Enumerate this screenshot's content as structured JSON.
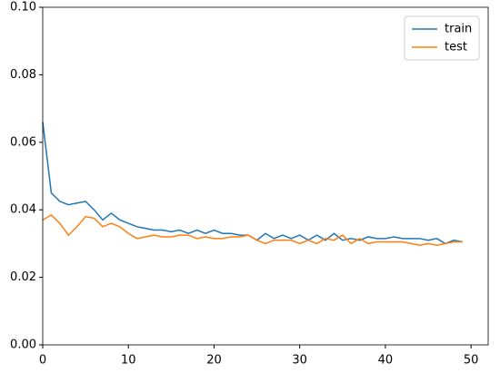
{
  "chart_data": {
    "type": "line",
    "x": [
      0,
      1,
      2,
      3,
      4,
      5,
      6,
      7,
      8,
      9,
      10,
      11,
      12,
      13,
      14,
      15,
      16,
      17,
      18,
      19,
      20,
      21,
      22,
      23,
      24,
      25,
      26,
      27,
      28,
      29,
      30,
      31,
      32,
      33,
      34,
      35,
      36,
      37,
      38,
      39,
      40,
      41,
      42,
      43,
      44,
      45,
      46,
      47,
      48,
      49
    ],
    "series": [
      {
        "name": "train",
        "color": "#1f77b4",
        "values": [
          0.066,
          0.045,
          0.0425,
          0.0415,
          0.042,
          0.0425,
          0.04,
          0.037,
          0.039,
          0.037,
          0.036,
          0.035,
          0.0345,
          0.034,
          0.034,
          0.0335,
          0.034,
          0.033,
          0.034,
          0.033,
          0.034,
          0.033,
          0.033,
          0.0325,
          0.0325,
          0.031,
          0.033,
          0.0315,
          0.0325,
          0.0315,
          0.0325,
          0.031,
          0.0325,
          0.031,
          0.033,
          0.031,
          0.0315,
          0.031,
          0.032,
          0.0315,
          0.0315,
          0.032,
          0.0315,
          0.0315,
          0.0315,
          0.031,
          0.0315,
          0.03,
          0.031,
          0.0305
        ]
      },
      {
        "name": "test",
        "color": "#ff7f0e",
        "values": [
          0.037,
          0.0385,
          0.036,
          0.0325,
          0.035,
          0.038,
          0.0375,
          0.035,
          0.036,
          0.035,
          0.033,
          0.0315,
          0.032,
          0.0325,
          0.032,
          0.032,
          0.0325,
          0.0325,
          0.0315,
          0.032,
          0.0315,
          0.0315,
          0.032,
          0.032,
          0.0325,
          0.031,
          0.03,
          0.031,
          0.031,
          0.031,
          0.03,
          0.031,
          0.03,
          0.0315,
          0.031,
          0.0325,
          0.03,
          0.0315,
          0.03,
          0.0305,
          0.0305,
          0.0305,
          0.0305,
          0.03,
          0.0295,
          0.03,
          0.0295,
          0.03,
          0.0305,
          0.0305
        ]
      }
    ],
    "xlim": [
      0,
      52
    ],
    "xticks": [
      0,
      10,
      20,
      30,
      40,
      50
    ],
    "ylim": [
      0,
      0.1
    ],
    "yticks": [
      {
        "value": 0,
        "label": "0.00"
      },
      {
        "value": 0.02,
        "label": "0.02"
      },
      {
        "value": 0.04,
        "label": "0.04"
      },
      {
        "value": 0.06,
        "label": "0.06"
      },
      {
        "value": 0.08,
        "label": "0.08"
      },
      {
        "value": 0.1,
        "label": "0.10"
      }
    ],
    "legend": "upper right"
  }
}
